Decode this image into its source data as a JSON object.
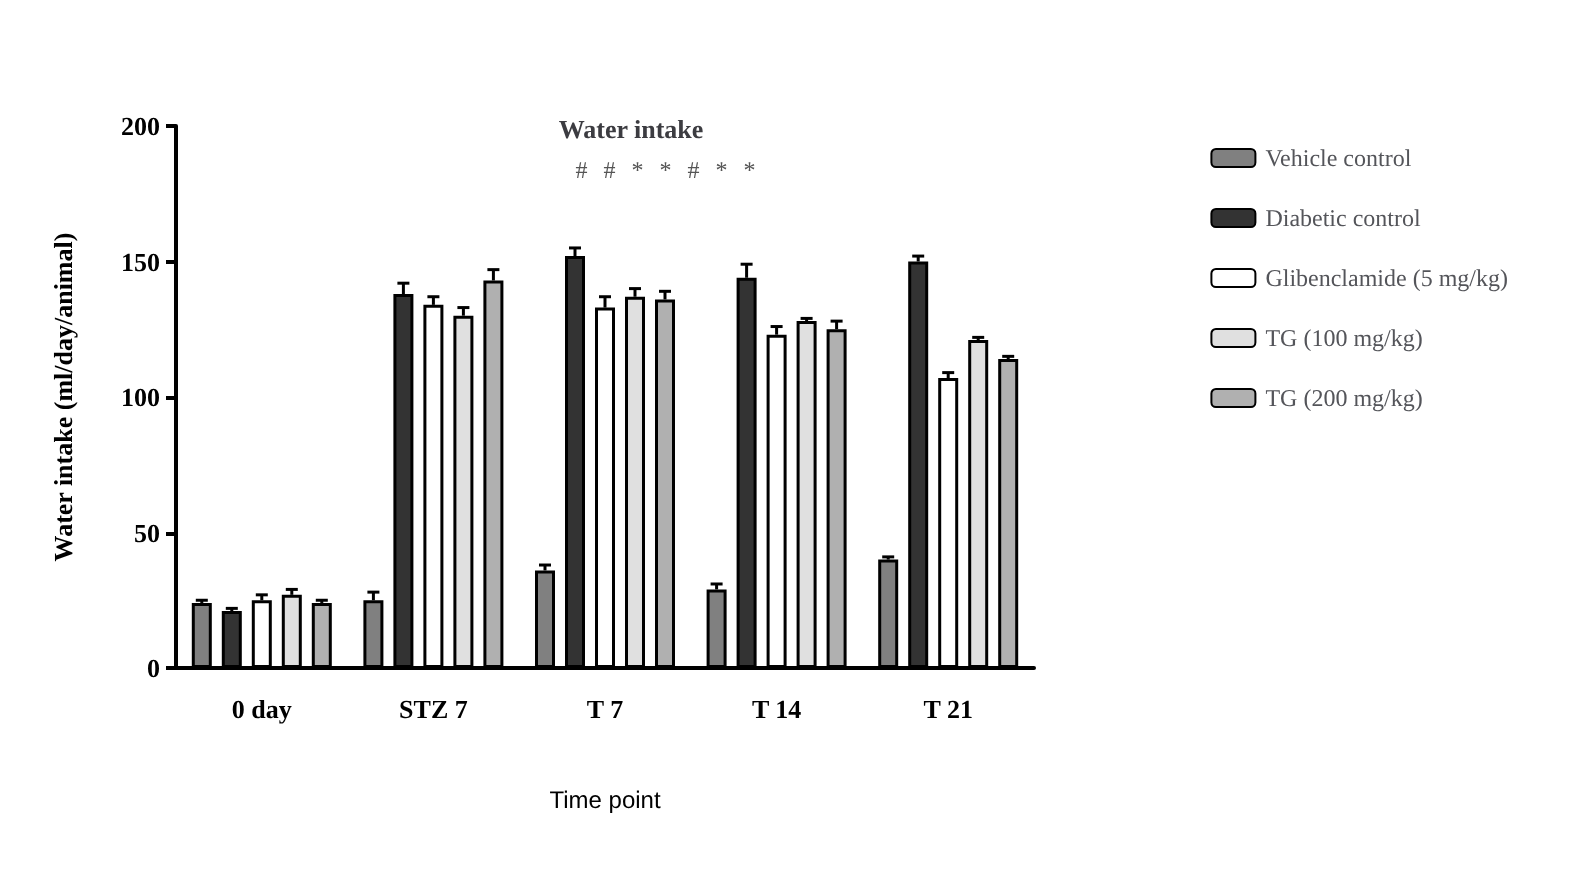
{
  "chart_data": {
    "type": "bar",
    "title": "Water intake",
    "xlabel": "Time point",
    "ylabel": "Water intake (ml/day/animal)",
    "categories": [
      "0 day",
      "STZ 7",
      "T 7",
      "T 14",
      "T 21"
    ],
    "series": [
      {
        "name": "Vehicle control",
        "color": "#808080",
        "values": [
          24,
          25,
          36,
          29,
          40
        ],
        "errors": [
          1,
          3,
          2,
          2,
          1
        ]
      },
      {
        "name": "Diabetic control",
        "color": "#333333",
        "values": [
          21,
          138,
          152,
          144,
          150
        ],
        "errors": [
          1,
          4,
          3,
          5,
          2
        ]
      },
      {
        "name": "Glibenclamide (5 mg/kg)",
        "color": "#ffffff",
        "values": [
          25,
          134,
          133,
          123,
          107
        ],
        "errors": [
          2,
          3,
          4,
          3,
          2
        ]
      },
      {
        "name": "TG (100 mg/kg)",
        "color": "#e0e0e0",
        "values": [
          27,
          130,
          137,
          128,
          121
        ],
        "errors": [
          2,
          3,
          3,
          1,
          1
        ]
      },
      {
        "name": "TG (200 mg/kg)",
        "color": "#b0b0b0",
        "values": [
          24,
          143,
          136,
          125,
          114
        ],
        "errors": [
          1,
          4,
          3,
          3,
          1
        ]
      }
    ],
    "ylim": [
      0,
      200
    ],
    "yticks": [
      0,
      50,
      100,
      150,
      200
    ],
    "grid": false,
    "legend": "right",
    "annotations": [
      "#",
      "#",
      "*",
      "*",
      "#",
      "*",
      "*"
    ]
  }
}
